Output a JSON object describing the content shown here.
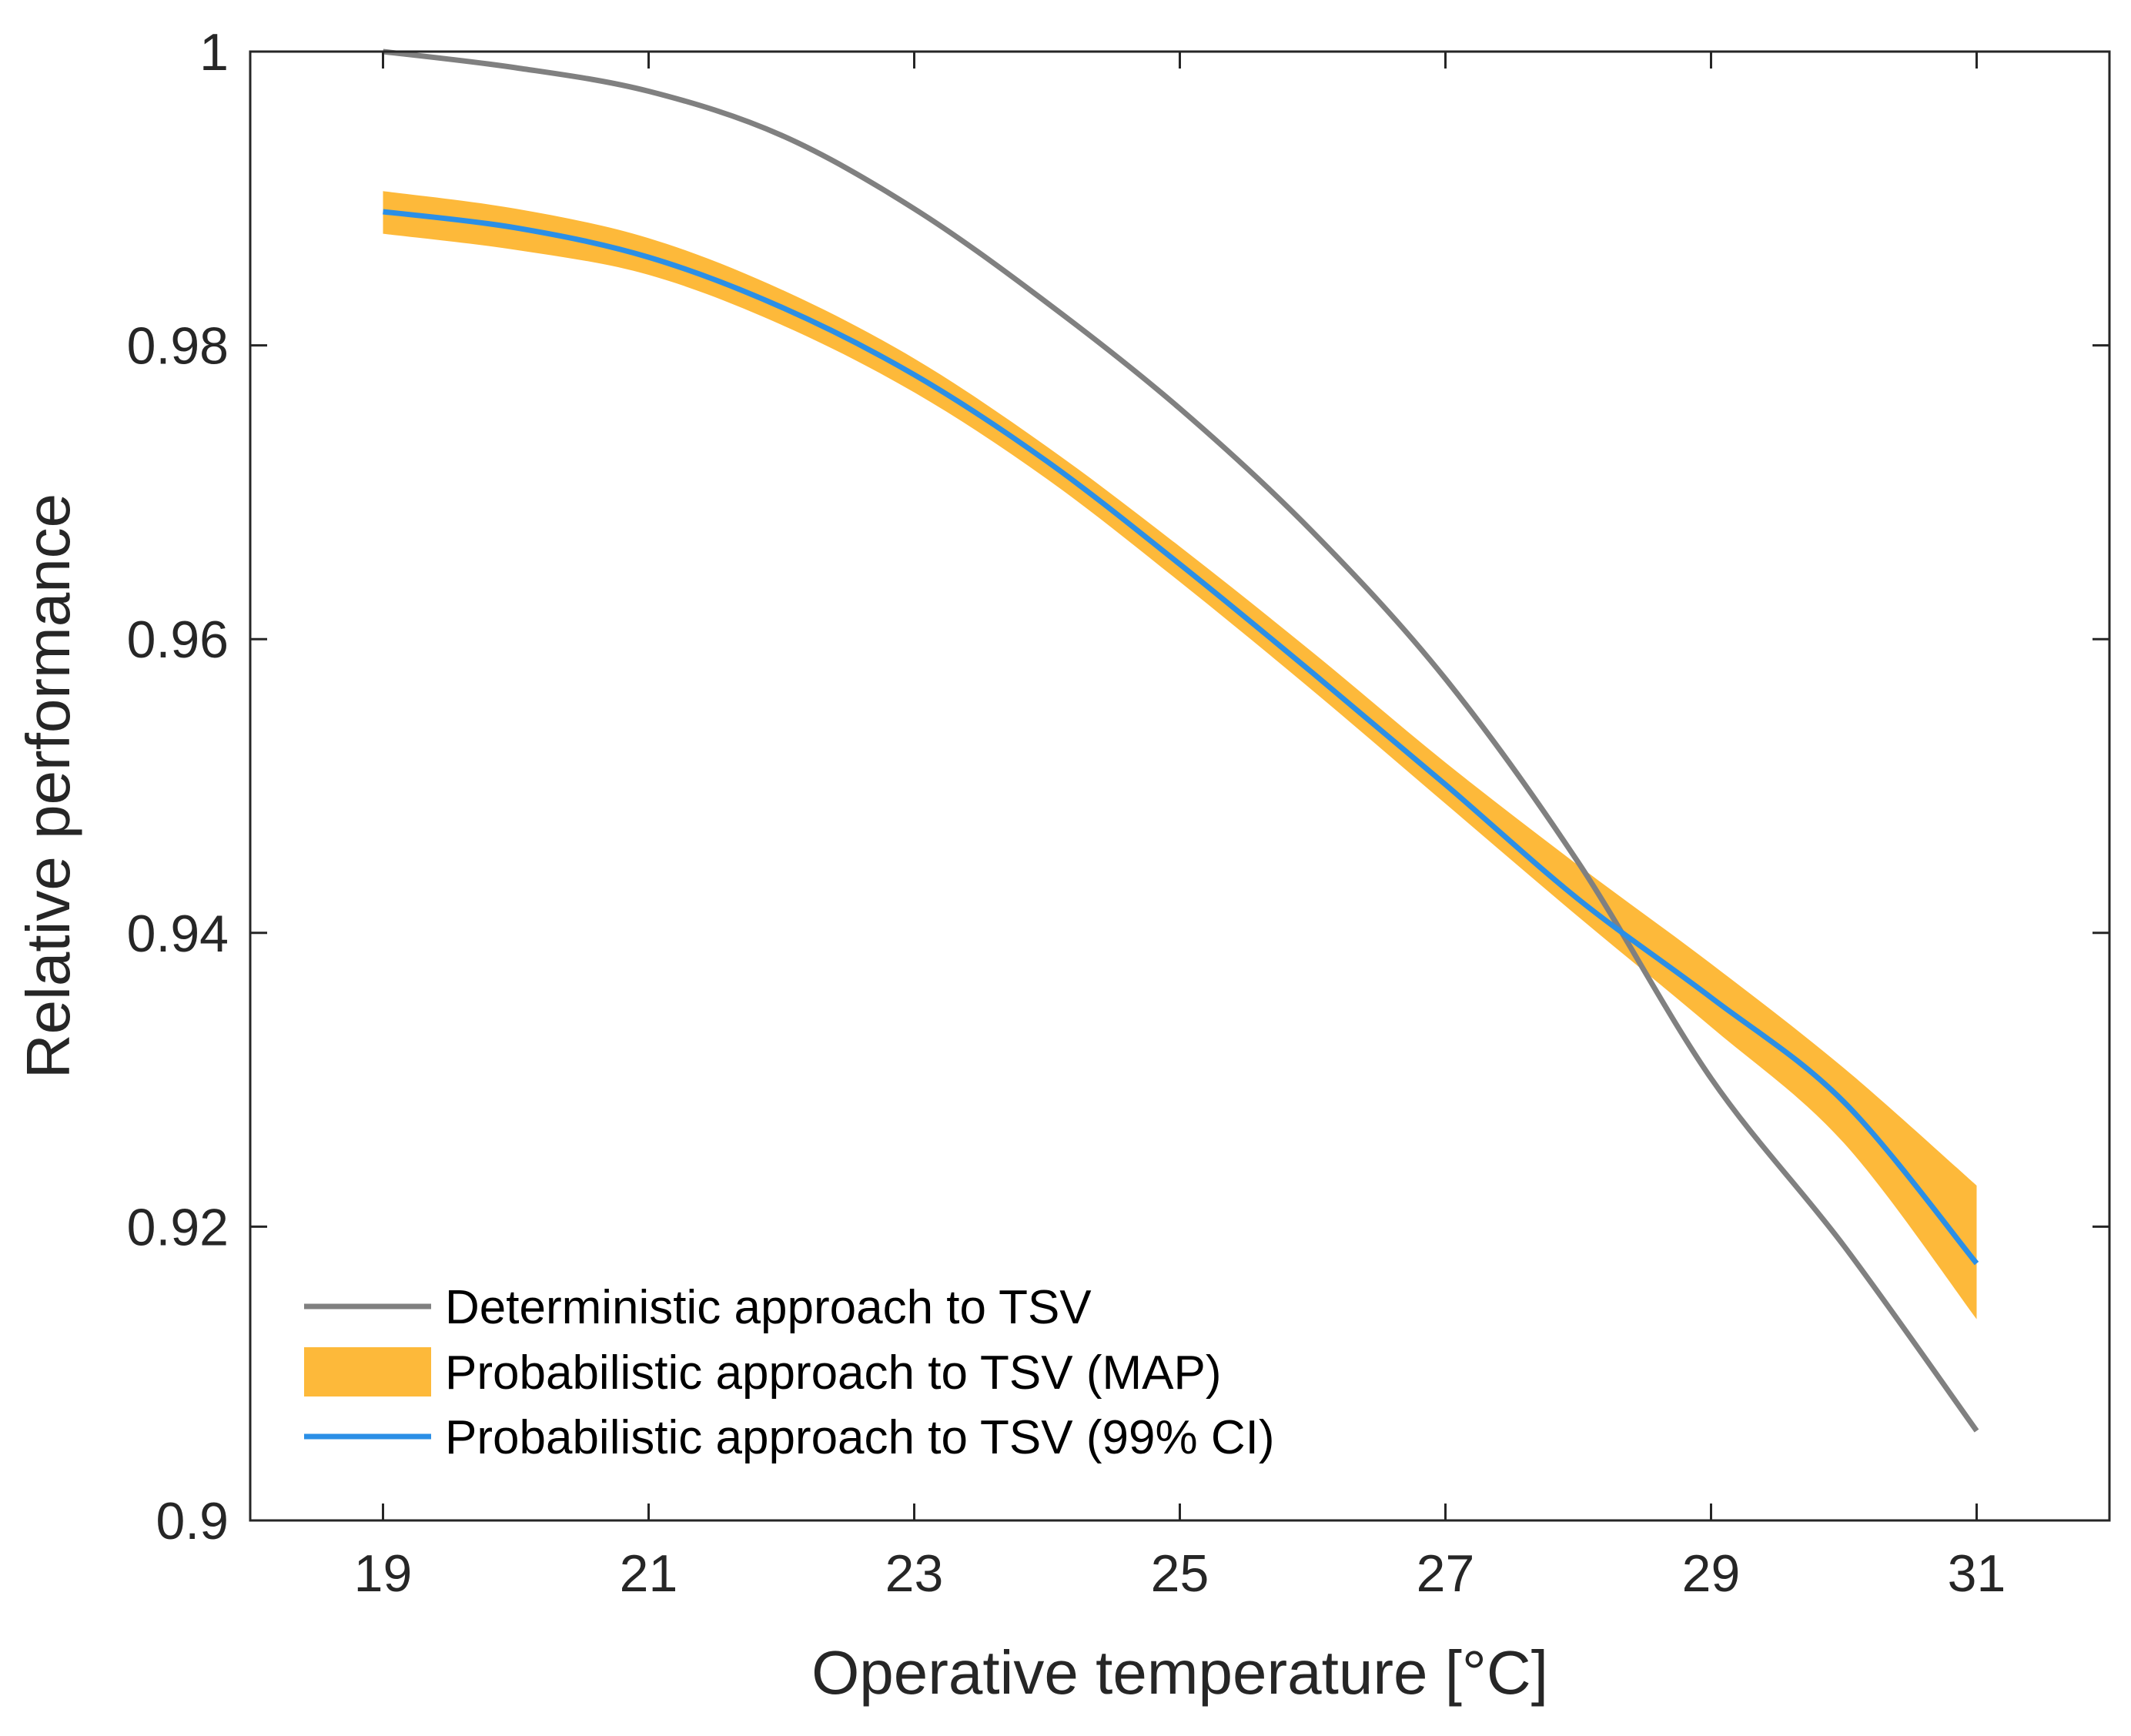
{
  "chart_data": {
    "type": "line",
    "xlabel": "Operative temperature [°C]",
    "ylabel": "Relative performance",
    "xlim": [
      18,
      32
    ],
    "ylim": [
      0.9,
      1.0
    ],
    "x_ticks": [
      19,
      21,
      23,
      25,
      27,
      29,
      31
    ],
    "x_tick_labels": [
      "19",
      "21",
      "23",
      "25",
      "27",
      "29",
      "31"
    ],
    "y_ticks": [
      0.9,
      0.92,
      0.94,
      0.96,
      0.98,
      1.0
    ],
    "y_tick_labels": [
      "0.9",
      "0.92",
      "0.94",
      "0.96",
      "0.98",
      "1"
    ],
    "grid": false,
    "legend_position": "bottom-left",
    "series": [
      {
        "name": "Deterministic approach to TSV",
        "kind": "line",
        "color": "#808080",
        "x": [
          19,
          20,
          21,
          22,
          23,
          24,
          25,
          26,
          27,
          28,
          29,
          30,
          31
        ],
        "y": [
          1.0,
          0.9989,
          0.9973,
          0.9943,
          0.9893,
          0.9829,
          0.9757,
          0.9673,
          0.9573,
          0.9448,
          0.9301,
          0.9187,
          0.9061
        ]
      },
      {
        "name": "Probabilistic approach to TSV (MAP)",
        "kind": "band",
        "color": "#FDB93A",
        "x": [
          19,
          20,
          21,
          22,
          23,
          24,
          25,
          26,
          27,
          28,
          29,
          30,
          31
        ],
        "lower": [
          0.9876,
          0.9865,
          0.9848,
          0.9814,
          0.9768,
          0.9709,
          0.9639,
          0.9565,
          0.9488,
          0.9411,
          0.9336,
          0.9257,
          0.9137
        ],
        "upper": [
          0.9905,
          0.9893,
          0.9873,
          0.9838,
          0.9791,
          0.9731,
          0.9663,
          0.9591,
          0.9516,
          0.9446,
          0.9379,
          0.9308,
          0.9228
        ]
      },
      {
        "name": "Probabilistic approach to TSV (99% CI)",
        "kind": "line",
        "color": "#2B8FE6",
        "x": [
          19,
          20,
          21,
          22,
          23,
          24,
          25,
          26,
          27,
          28,
          29,
          30,
          31
        ],
        "y": [
          0.9891,
          0.988,
          0.986,
          0.9826,
          0.978,
          0.9721,
          0.9651,
          0.9577,
          0.9501,
          0.9423,
          0.9356,
          0.9285,
          0.9175
        ]
      }
    ]
  }
}
